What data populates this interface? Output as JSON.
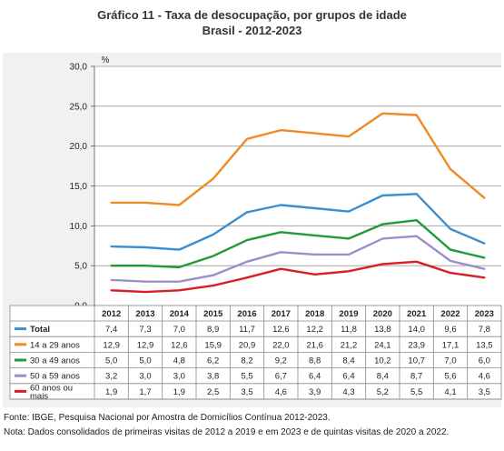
{
  "title": "Gráfico 11 - Taxa de desocupação, por grupos de idade",
  "subtitle": "Brasil - 2012-2023",
  "footnotes": [
    "Fonte: IBGE, Pesquisa Nacional por Amostra de Domicílios Contínua 2012-2023.",
    "Nota: Dados consolidados de primeiras visitas de 2012 a 2019 e em 2023 e de quintas visitas de 2020 a 2022."
  ],
  "chart_data": {
    "type": "line",
    "title": "Gráfico 11 - Taxa de desocupação, por grupos de idade",
    "subtitle": "Brasil - 2012-2023",
    "ylabel": "%",
    "xlabel": "",
    "ylim": [
      0,
      30
    ],
    "yticks": [
      0,
      5,
      10,
      15,
      20,
      25,
      30
    ],
    "ytick_labels": [
      "0,0",
      "5,0",
      "10,0",
      "15,0",
      "20,0",
      "25,0",
      "30,0"
    ],
    "grid": true,
    "legend": "data-table-below",
    "x": [
      "2012",
      "2013",
      "2014",
      "2015",
      "2016",
      "2017",
      "2018",
      "2019",
      "2020",
      "2021",
      "2022",
      "2023"
    ],
    "series": [
      {
        "name": "Total",
        "color": "#3a8fd0",
        "values": [
          7.4,
          7.3,
          7.0,
          8.9,
          11.7,
          12.6,
          12.2,
          11.8,
          13.8,
          14.0,
          9.6,
          7.8
        ],
        "labels": [
          "7,4",
          "7,3",
          "7,0",
          "8,9",
          "11,7",
          "12,6",
          "12,2",
          "11,8",
          "13,8",
          "14,0",
          "9,6",
          "7,8"
        ]
      },
      {
        "name": "14 a 29 anos",
        "color": "#f08a24",
        "values": [
          12.9,
          12.9,
          12.6,
          15.9,
          20.9,
          22.0,
          21.6,
          21.2,
          24.1,
          23.9,
          17.1,
          13.5
        ],
        "labels": [
          "12,9",
          "12,9",
          "12,6",
          "15,9",
          "20,9",
          "22,0",
          "21,6",
          "21,2",
          "24,1",
          "23,9",
          "17,1",
          "13,5"
        ]
      },
      {
        "name": "30 a 49 anos",
        "color": "#1f9a3a",
        "values": [
          5.0,
          5.0,
          4.8,
          6.2,
          8.2,
          9.2,
          8.8,
          8.4,
          10.2,
          10.7,
          7.0,
          6.0
        ],
        "labels": [
          "5,0",
          "5,0",
          "4,8",
          "6,2",
          "8,2",
          "9,2",
          "8,8",
          "8,4",
          "10,2",
          "10,7",
          "7,0",
          "6,0"
        ]
      },
      {
        "name": "50 a 59 anos",
        "color": "#9b8fc7",
        "values": [
          3.2,
          3.0,
          3.0,
          3.8,
          5.5,
          6.7,
          6.4,
          6.4,
          8.4,
          8.7,
          5.6,
          4.6
        ],
        "labels": [
          "3,2",
          "3,0",
          "3,0",
          "3,8",
          "5,5",
          "6,7",
          "6,4",
          "6,4",
          "8,4",
          "8,7",
          "5,6",
          "4,6"
        ]
      },
      {
        "name": "60 anos ou mais",
        "color": "#d81e26",
        "values": [
          1.9,
          1.7,
          1.9,
          2.5,
          3.5,
          4.6,
          3.9,
          4.3,
          5.2,
          5.5,
          4.1,
          3.5
        ],
        "labels": [
          "1,9",
          "1,7",
          "1,9",
          "2,5",
          "3,5",
          "4,6",
          "3,9",
          "4,3",
          "5,2",
          "5,5",
          "4,1",
          "3,5"
        ]
      }
    ]
  }
}
